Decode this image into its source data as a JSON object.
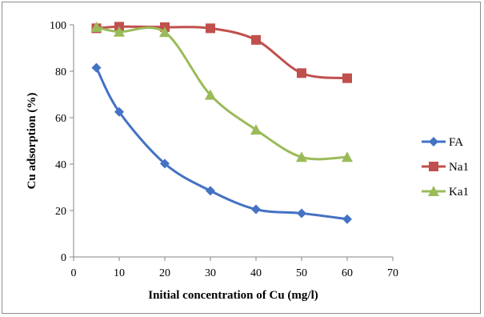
{
  "chart_data": {
    "type": "line",
    "title": "",
    "xlabel": "Initial concentration of Cu (mg/l)",
    "ylabel": "Cu adsorption (%)",
    "xlim": [
      0,
      70
    ],
    "ylim": [
      0,
      100
    ],
    "xticks": [
      0,
      10,
      20,
      30,
      40,
      50,
      60,
      70
    ],
    "yticks": [
      0,
      20,
      40,
      60,
      80,
      100
    ],
    "grid": false,
    "legend_position": "right",
    "x": [
      5,
      10,
      20,
      30,
      40,
      50,
      60
    ],
    "series": [
      {
        "name": "FA",
        "color": "#4472C4",
        "marker": "diamond",
        "values": [
          81.5,
          62.5,
          40.2,
          28.5,
          20.5,
          18.8,
          16.3
        ]
      },
      {
        "name": "Na1",
        "color": "#C0504D",
        "marker": "square",
        "values": [
          98.5,
          99.2,
          99.0,
          98.5,
          93.5,
          79.2,
          77.0
        ]
      },
      {
        "name": "Ka1",
        "color": "#9BBB59",
        "marker": "triangle",
        "values": [
          99.0,
          97.0,
          96.8,
          69.8,
          54.8,
          43.0,
          43.0
        ]
      }
    ]
  }
}
